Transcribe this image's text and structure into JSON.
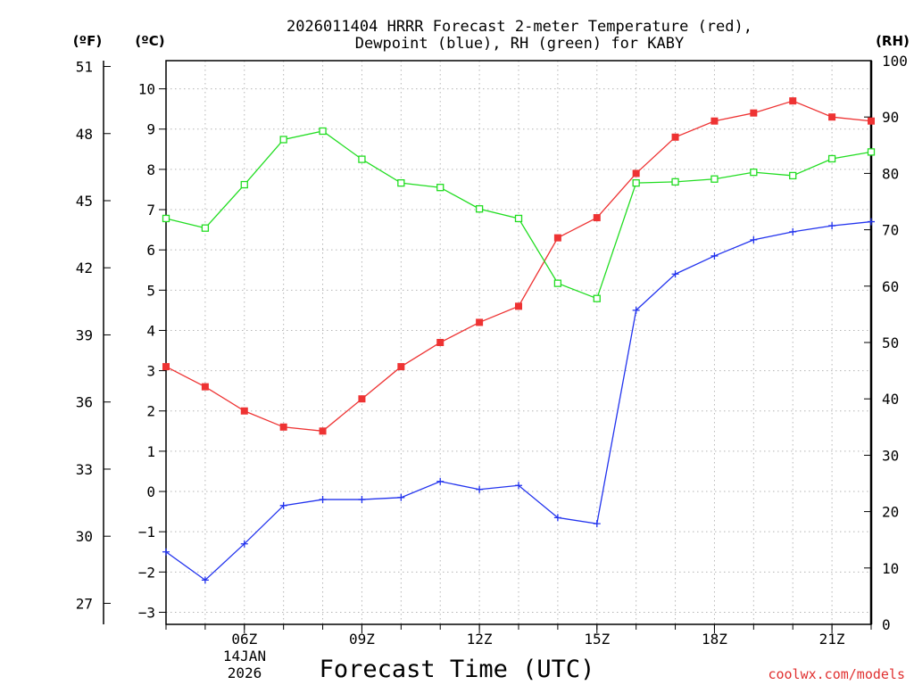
{
  "chart_data": {
    "type": "line",
    "title_line1": "2026011404 HRRR Forecast 2-meter Temperature (red),",
    "title_line2": "Dewpoint (blue), RH (green) for KABY",
    "units": {
      "fahrenheit": "(ºF)",
      "celsius": "(ºC)",
      "rh": "(RH)"
    },
    "xlabel": "Forecast Time (UTC)",
    "credit": "coolwx.com/models",
    "date_label_line1": "14JAN",
    "date_label_line2": "2026",
    "x_hours": [
      4,
      5,
      6,
      7,
      8,
      9,
      10,
      11,
      12,
      13,
      14,
      15,
      16,
      17,
      18,
      19,
      20,
      21,
      22
    ],
    "x_range": [
      4,
      22
    ],
    "x_ticks": [
      {
        "hour": 6,
        "label": "06Z"
      },
      {
        "hour": 9,
        "label": "09Z"
      },
      {
        "hour": 12,
        "label": "12Z"
      },
      {
        "hour": 15,
        "label": "15Z"
      },
      {
        "hour": 18,
        "label": "18Z"
      },
      {
        "hour": 21,
        "label": "21Z"
      }
    ],
    "celsius_axis": {
      "range": [
        -3.3,
        10.7
      ],
      "ticks": [
        "-3",
        "-2",
        "-1",
        "0",
        "1",
        "2",
        "3",
        "4",
        "5",
        "6",
        "7",
        "8",
        "9",
        "10"
      ]
    },
    "fahrenheit_axis": {
      "ticks": [
        "27",
        "30",
        "33",
        "36",
        "39",
        "42",
        "45",
        "48",
        "51"
      ]
    },
    "rh_axis": {
      "range": [
        0,
        100
      ],
      "ticks": [
        "0",
        "10",
        "20",
        "30",
        "40",
        "50",
        "60",
        "70",
        "80",
        "90",
        "100"
      ]
    },
    "series": [
      {
        "name": "2-meter Temperature",
        "axis": "celsius",
        "color": "#ee3333",
        "marker": "filled-square",
        "values": [
          3.1,
          2.6,
          2.0,
          1.6,
          1.5,
          2.3,
          3.1,
          3.7,
          4.2,
          4.6,
          6.3,
          6.8,
          7.9,
          8.8,
          9.2,
          9.4,
          9.7,
          9.3,
          9.2
        ]
      },
      {
        "name": "Dewpoint",
        "axis": "celsius",
        "color": "#2233ee",
        "marker": "plus",
        "values": [
          -1.5,
          -2.2,
          -1.3,
          -0.35,
          -0.2,
          -0.2,
          -0.15,
          0.25,
          0.05,
          0.15,
          -0.65,
          -0.8,
          4.5,
          5.4,
          5.85,
          6.25,
          6.45,
          6.6,
          6.7
        ]
      },
      {
        "name": "RH",
        "axis": "rh",
        "color": "#22dd22",
        "marker": "open-square",
        "values": [
          72.0,
          70.3,
          78.0,
          86.0,
          87.5,
          82.5,
          78.3,
          77.5,
          73.7,
          72.0,
          60.5,
          57.8,
          78.3,
          78.5,
          79.0,
          80.2,
          79.6,
          82.6,
          83.8
        ]
      }
    ],
    "grid": true
  }
}
